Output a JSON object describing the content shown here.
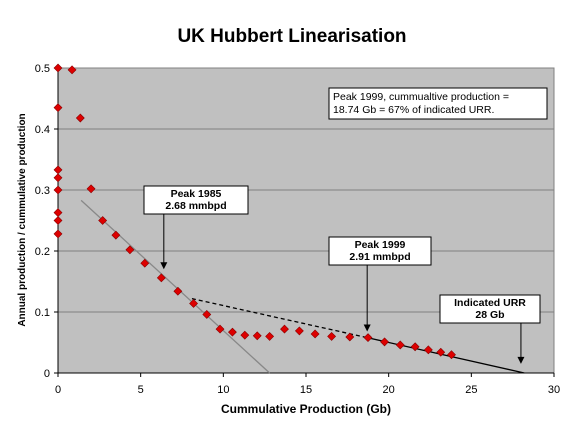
{
  "chart_data": {
    "type": "scatter",
    "title": "UK Hubbert Linearisation",
    "xlabel": "Cummulative Production (Gb)",
    "ylabel": "Annual production / cummulative production",
    "xlim": [
      0,
      30
    ],
    "ylim": [
      0,
      0.5
    ],
    "xticks": [
      "0",
      "5",
      "10",
      "15",
      "20",
      "25",
      "30"
    ],
    "yticks": [
      "0",
      "0.1",
      "0.2",
      "0.3",
      "0.4",
      "0.5"
    ],
    "grid": "horizontal",
    "plot_background": "#c0c0c0",
    "marker_color": "#dd0000",
    "series": [
      {
        "points": [
          [
            0.0,
            0.5
          ],
          [
            0.85,
            0.497
          ],
          [
            0.0,
            0.435
          ],
          [
            1.35,
            0.418
          ],
          [
            0.0,
            0.333
          ],
          [
            0.0,
            0.32
          ],
          [
            0.0,
            0.3
          ],
          [
            2.0,
            0.302
          ],
          [
            0.0,
            0.263
          ],
          [
            0.0,
            0.25
          ],
          [
            0.0,
            0.228
          ],
          [
            2.7,
            0.25
          ],
          [
            3.5,
            0.226
          ],
          [
            4.35,
            0.202
          ],
          [
            5.25,
            0.18
          ],
          [
            6.25,
            0.156
          ],
          [
            7.25,
            0.134
          ],
          [
            8.2,
            0.114
          ],
          [
            9.0,
            0.096
          ],
          [
            9.8,
            0.072
          ],
          [
            10.55,
            0.067
          ],
          [
            11.3,
            0.062
          ],
          [
            12.05,
            0.061
          ],
          [
            12.8,
            0.06
          ],
          [
            13.7,
            0.072
          ],
          [
            14.6,
            0.069
          ],
          [
            15.55,
            0.064
          ],
          [
            16.55,
            0.06
          ],
          [
            17.65,
            0.059
          ],
          [
            18.75,
            0.058
          ],
          [
            19.75,
            0.051
          ],
          [
            20.7,
            0.046
          ],
          [
            21.6,
            0.043
          ],
          [
            22.4,
            0.038
          ],
          [
            23.15,
            0.034
          ],
          [
            23.8,
            0.03
          ]
        ]
      }
    ],
    "lines": [
      {
        "style": "solid",
        "color": "#888888",
        "from": [
          1.4,
          0.283
        ],
        "to": [
          12.8,
          0.0
        ]
      },
      {
        "style": "dashed",
        "color": "#000000",
        "from": [
          8.1,
          0.122
        ],
        "to": [
          18.7,
          0.058
        ]
      },
      {
        "style": "solid",
        "color": "#000000",
        "from": [
          18.7,
          0.058
        ],
        "to": [
          28.2,
          0.0
        ]
      }
    ],
    "annotations": [
      {
        "lines": [
          "Peak 1985",
          "2.68 mmbpd"
        ],
        "arrow_to": [
          6.4,
          0.17
        ]
      },
      {
        "lines": [
          "Peak 1999",
          "2.91 mmbpd"
        ],
        "arrow_to": [
          18.7,
          0.068
        ]
      },
      {
        "lines": [
          "Indicated URR",
          "28 Gb"
        ],
        "arrow_to": [
          28.0,
          0.015
        ]
      }
    ],
    "note": [
      "Peak 1999, cummualtive production =",
      "18.74 Gb = 67% of indicated URR."
    ]
  }
}
